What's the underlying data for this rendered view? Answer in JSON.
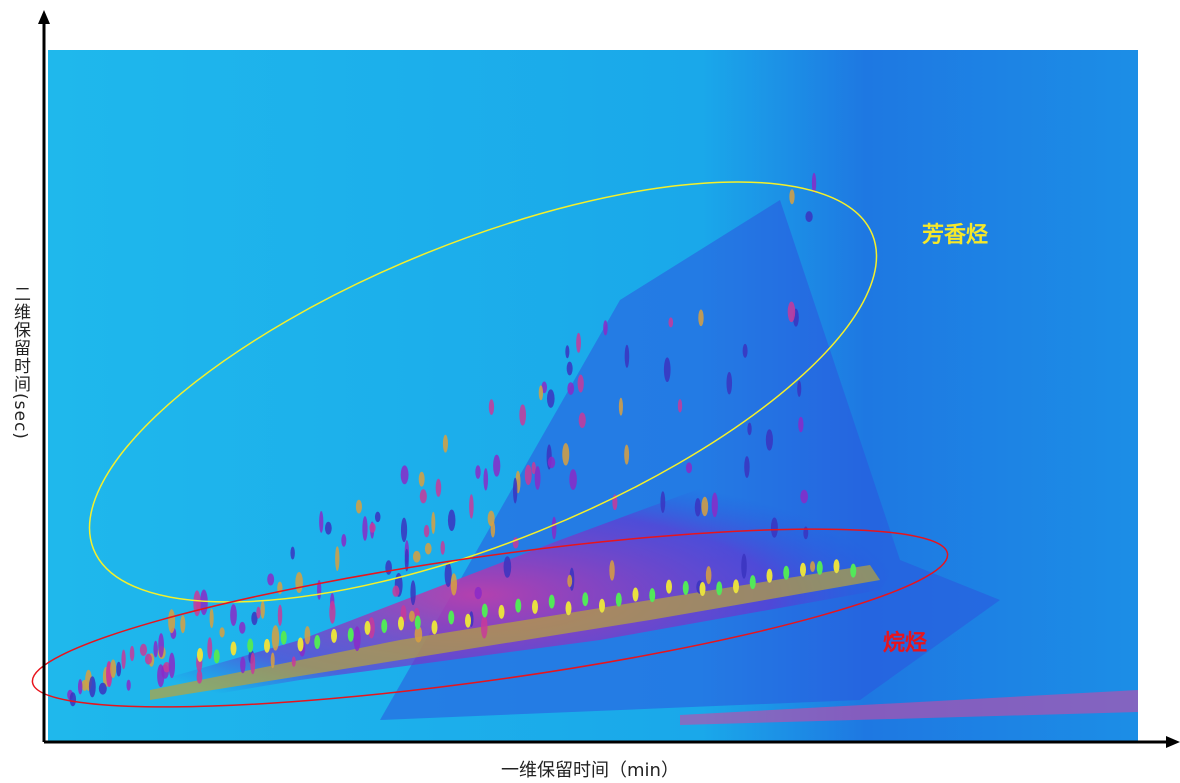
{
  "chart_data": {
    "type": "heatmap",
    "xlabel": "一维保留时间（min）",
    "ylabel": "二维保留时间(sec)",
    "annotations": [
      {
        "text": "芳香烃",
        "color": "#f5e82a"
      },
      {
        "text": "烷烃",
        "color": "#e8141c"
      }
    ]
  }
}
